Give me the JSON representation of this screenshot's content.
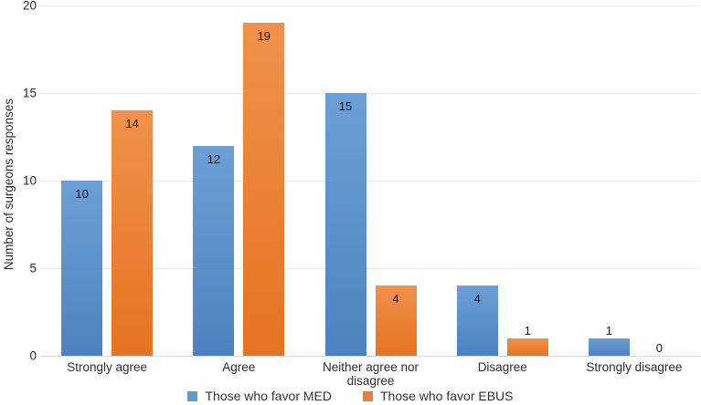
{
  "chart_data": {
    "type": "bar",
    "title": "",
    "xlabel": "",
    "ylabel": "Number of surgeons responses",
    "categories": [
      "Strongly agree",
      "Agree",
      "Neither agree nor disagree",
      "Disagree",
      "Strongly disagree"
    ],
    "series": [
      {
        "name": "Those who favor MED",
        "color": "#5b9bd5",
        "values": [
          10,
          12,
          15,
          4,
          1
        ]
      },
      {
        "name": "Those who favor EBUS",
        "color": "#ed7d31",
        "values": [
          14,
          19,
          4,
          1,
          0
        ]
      }
    ],
    "ylim": [
      0,
      20
    ],
    "yticks": [
      0,
      5,
      10,
      15,
      20
    ],
    "grid": true,
    "legend_position": "bottom",
    "colors": {
      "gridline": "#e5e9f0",
      "axis_line": "#d3d8e0",
      "label_text": "#1b1b1b",
      "tick_text": "#2b2b2b"
    }
  }
}
